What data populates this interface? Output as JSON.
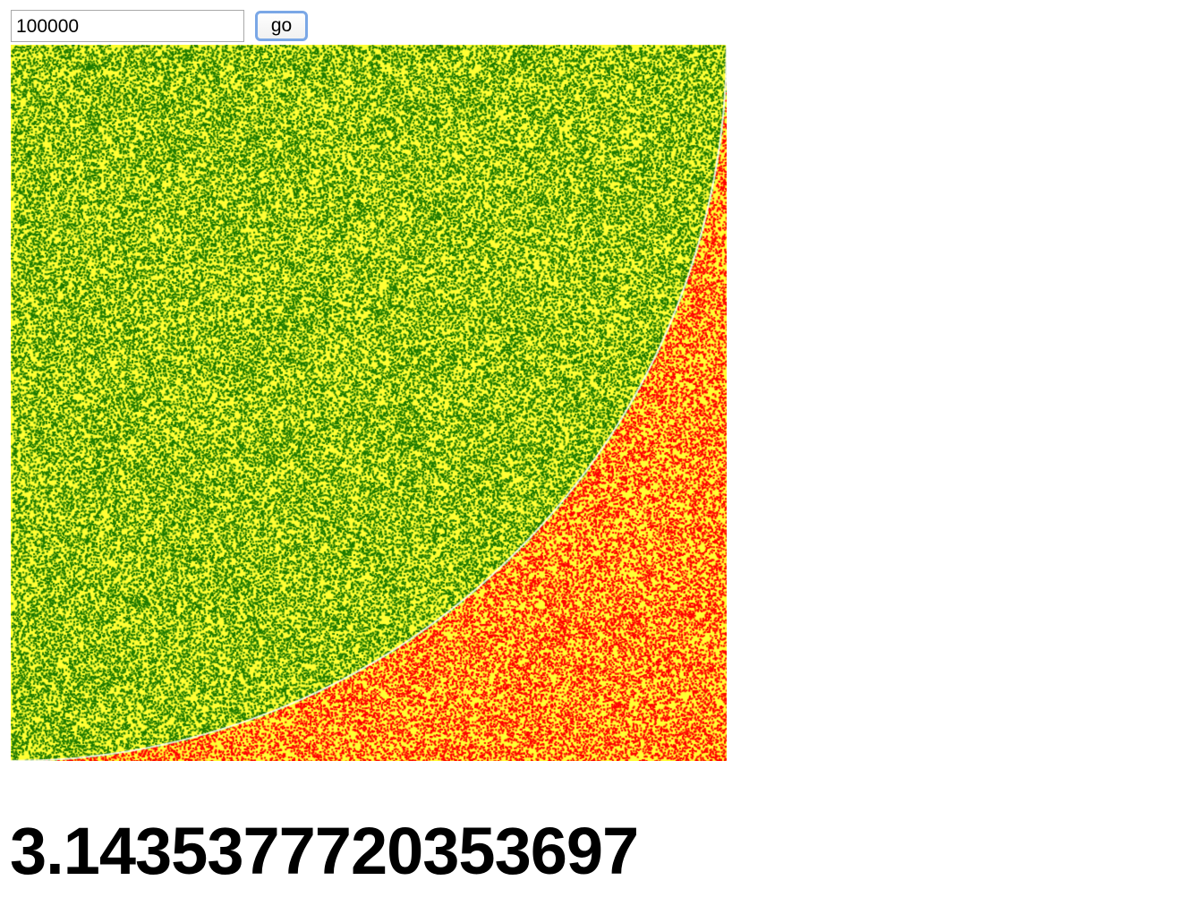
{
  "controls": {
    "count_value": "100000",
    "go_label": "go"
  },
  "plot": {
    "background_color": "#ffff33",
    "inside_color": "#1e7a00",
    "outside_color": "#ff0000",
    "point_count": 100000
  },
  "result": {
    "pi_estimate": "3.14353777203536 97"
  }
}
